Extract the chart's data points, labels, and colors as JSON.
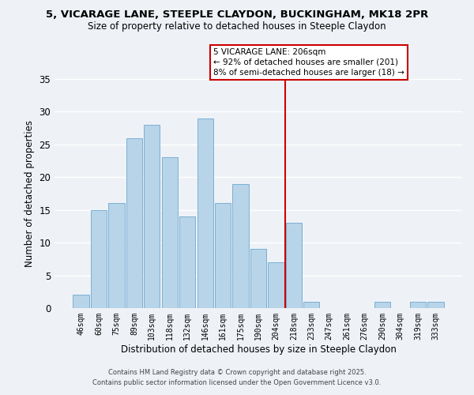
{
  "title_line1": "5, VICARAGE LANE, STEEPLE CLAYDON, BUCKINGHAM, MK18 2PR",
  "title_line2": "Size of property relative to detached houses in Steeple Claydon",
  "xlabel": "Distribution of detached houses by size in Steeple Claydon",
  "ylabel": "Number of detached properties",
  "bar_labels": [
    "46sqm",
    "60sqm",
    "75sqm",
    "89sqm",
    "103sqm",
    "118sqm",
    "132sqm",
    "146sqm",
    "161sqm",
    "175sqm",
    "190sqm",
    "204sqm",
    "218sqm",
    "233sqm",
    "247sqm",
    "261sqm",
    "276sqm",
    "290sqm",
    "304sqm",
    "319sqm",
    "333sqm"
  ],
  "bar_values": [
    2,
    15,
    16,
    26,
    28,
    23,
    14,
    29,
    16,
    19,
    9,
    7,
    13,
    1,
    0,
    0,
    0,
    1,
    0,
    1,
    1
  ],
  "bar_color": "#b8d4e8",
  "bar_edgecolor": "#7aafd4",
  "ylim": [
    0,
    35
  ],
  "yticks": [
    0,
    5,
    10,
    15,
    20,
    25,
    30,
    35
  ],
  "vline_x": 11.5,
  "vline_color": "#cc0000",
  "annotation_title": "5 VICARAGE LANE: 206sqm",
  "annotation_line1": "← 92% of detached houses are smaller (201)",
  "annotation_line2": "8% of semi-detached houses are larger (18) →",
  "footer_line1": "Contains HM Land Registry data © Crown copyright and database right 2025.",
  "footer_line2": "Contains public sector information licensed under the Open Government Licence v3.0.",
  "background_color": "#eef2f7",
  "grid_color": "#ffffff"
}
